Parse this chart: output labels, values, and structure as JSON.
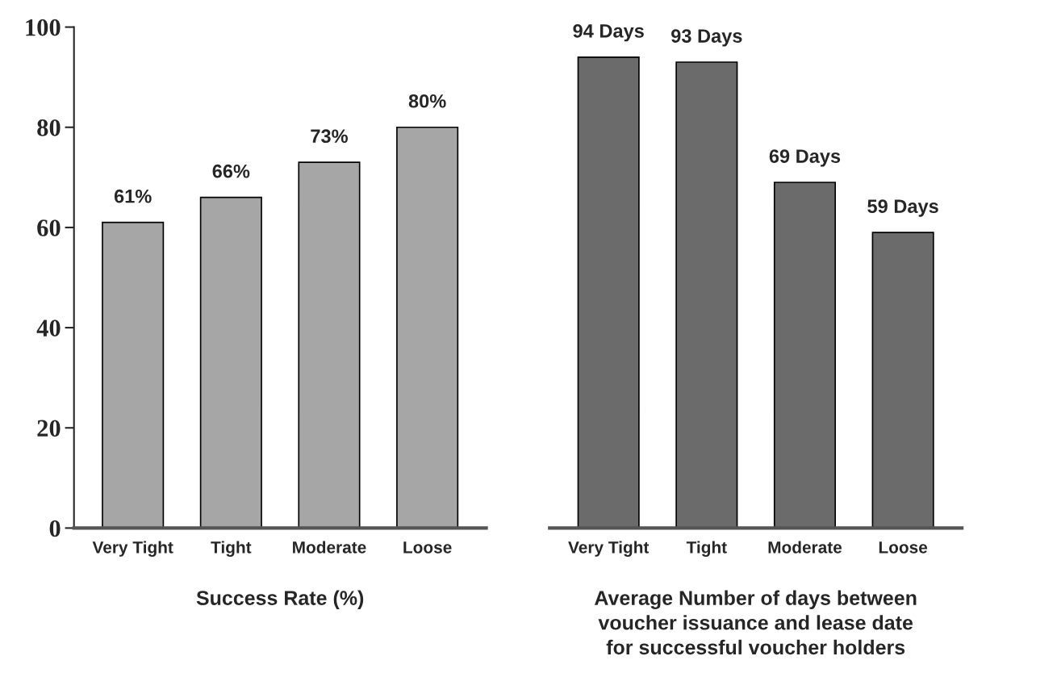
{
  "chart_data": [
    {
      "type": "bar",
      "xlabel": "Success Rate (%)",
      "categories": [
        "Very Tight",
        "Tight",
        "Moderate",
        "Loose"
      ],
      "values": [
        61,
        66,
        73,
        80
      ],
      "value_labels": [
        "61%",
        "66%",
        "73%",
        "80%"
      ],
      "color": "#a6a6a6",
      "ylim": [
        0,
        100
      ],
      "yticks": [
        0,
        20,
        40,
        60,
        80,
        100
      ],
      "grid": false
    },
    {
      "type": "bar",
      "xlabel": "Average Number of days between\nvoucher issuance and lease date\nfor successful voucher holders",
      "categories": [
        "Very Tight",
        "Tight",
        "Moderate",
        "Loose"
      ],
      "values": [
        94,
        93,
        69,
        59
      ],
      "value_labels": [
        "94 Days",
        "93 Days",
        "69 Days",
        "59 Days"
      ],
      "color": "#6b6b6b",
      "ylim": [
        0,
        100
      ],
      "yticks": [
        0,
        20,
        40,
        60,
        80,
        100
      ],
      "grid": false,
      "tick_labels": "x"
    }
  ]
}
